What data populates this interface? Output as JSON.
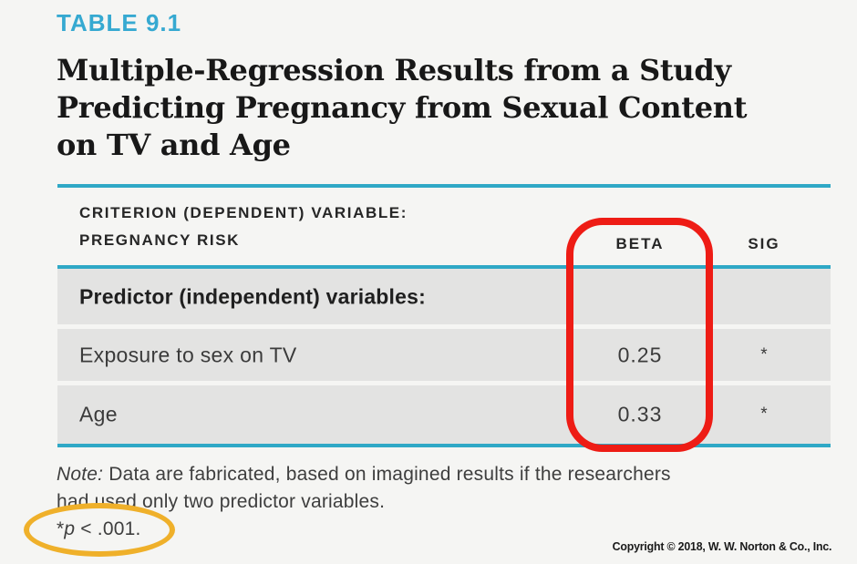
{
  "colors": {
    "page_bg": "#f5f5f3",
    "teal_rule": "#2fa8c6",
    "label_cyan": "#36a9d1",
    "row_gray": "#e3e3e2",
    "red_annotation": "#ee1c15",
    "orange_annotation": "#efb02a"
  },
  "header": {
    "table_label": "TABLE 9.1",
    "title_lines": [
      "Multiple-Regression Results from a Study",
      "Predicting Pregnancy from Sexual Content",
      "on TV and Age"
    ]
  },
  "chart_data": {
    "type": "table",
    "title": "Multiple-Regression Results from a Study Predicting Pregnancy from Sexual Content on TV and Age",
    "criterion_header_line1": "CRITERION (DEPENDENT) VARIABLE:",
    "criterion_header_line2": "PREGNANCY RISK",
    "columns": [
      "BETA",
      "SIG"
    ],
    "section_row_label": "Predictor (independent) variables:",
    "rows": [
      {
        "label": "Exposure to sex on TV",
        "beta": "0.25",
        "sig": "*"
      },
      {
        "label": "Age",
        "beta": "0.33",
        "sig": "*"
      }
    ]
  },
  "note": {
    "prefix": "Note:",
    "line1_rest": " Data are fabricated, based on imagined results if the researchers",
    "line2": "had used only two predictor variables.",
    "sig_star": "*",
    "sig_p": "p",
    "sig_rest": " < .001."
  },
  "annotations": {
    "red_box_target": "BETA column",
    "orange_ellipse_target": "*p < .001."
  },
  "copyright": "Copyright © 2018, W. W. Norton & Co., Inc."
}
